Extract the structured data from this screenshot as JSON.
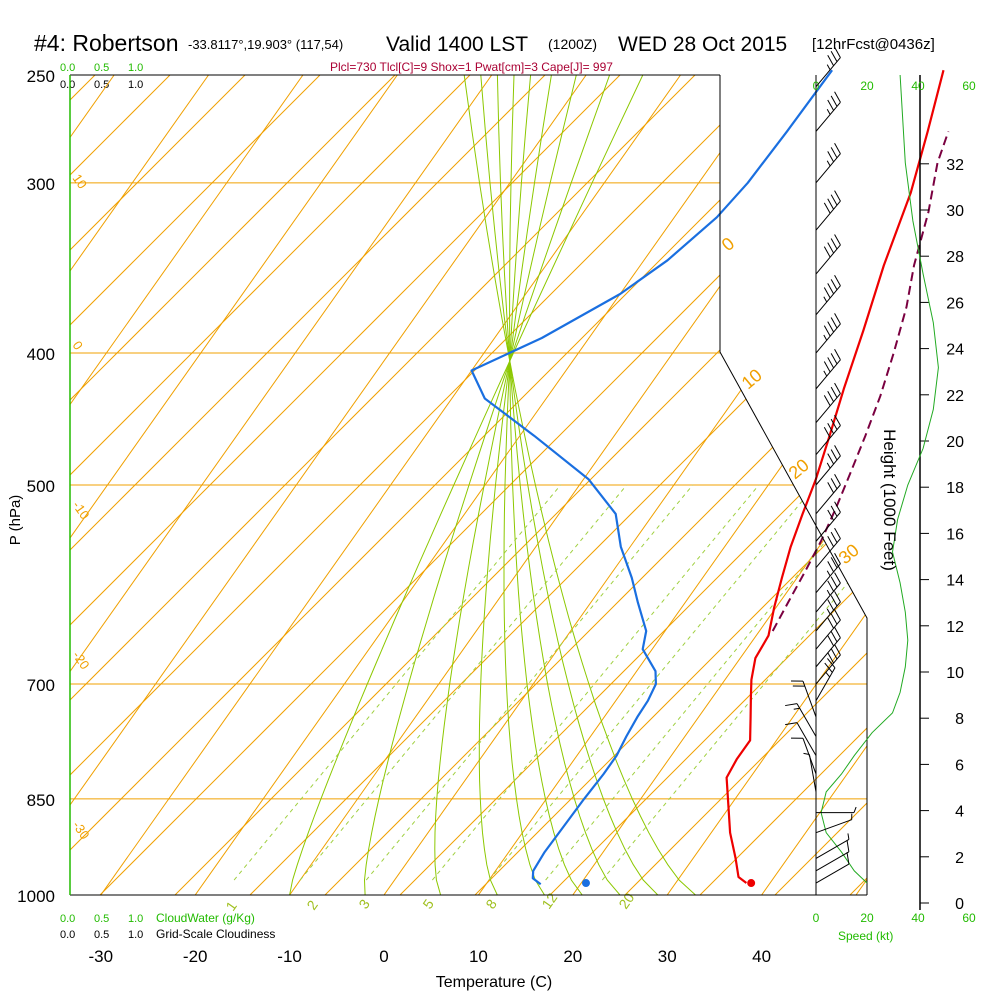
{
  "header": {
    "station": "#4: Robertson",
    "coords": "-33.8117°,19.903° (117,54)",
    "valid": "Valid 1400 LST",
    "utc": "(1200Z)",
    "date": "WED 28 Oct 2015",
    "forecast": "[12hrFcst@0436z]",
    "indices": "Plcl=730 Tlcl[C]=9 Shox=1 Pwat[cm]=3 Cape[J]= 997"
  },
  "legends": {
    "cloudwater_label": "CloudWater (g/Kg)",
    "cloudiness_label": "Grid-Scale Cloudiness",
    "scale_ticks": [
      "0.0",
      "0.5",
      "1.0"
    ],
    "speed_label": "Speed (kt)",
    "speed_ticks": [
      "0",
      "20",
      "40",
      "60"
    ]
  },
  "colors": {
    "isotherm": "#f0a000",
    "dry_adiabat": "#f0a000",
    "moist_adiabat": "#8cc800",
    "mixing_ratio": "#a0d040",
    "temperature": "#ee0000",
    "dewpoint": "#1a6fe0",
    "parcel": "#7a0040",
    "wind_speed": "#22aa22",
    "axis": "#000000"
  },
  "chart_data": {
    "type": "line",
    "title": "#4: Robertson -33.8117°,19.903° (117,54) Valid 1400 LST (1200Z) WED 28 Oct 2015 [12hrFcst@0436z]",
    "xlabel": "Temperature (C)",
    "ylabel": "P (hPa)",
    "y2label": "Height (1000 Feet)",
    "xlim": [
      -34,
      45
    ],
    "ylim": [
      1000,
      250
    ],
    "x_ticks": [
      -30,
      -20,
      -10,
      0,
      10,
      20,
      30,
      40
    ],
    "p_ticks": [
      250,
      300,
      400,
      500,
      700,
      850,
      1000
    ],
    "height_ticks": [
      0,
      2,
      4,
      6,
      8,
      10,
      12,
      14,
      16,
      18,
      20,
      22,
      24,
      26,
      28,
      30,
      32
    ],
    "isotherm_labels": [
      -30,
      -20,
      -10,
      0,
      10,
      20,
      30
    ],
    "mixing_ratio_labels": [
      "1",
      "2",
      "3",
      "5",
      "8",
      "12",
      "20"
    ],
    "series": [
      {
        "name": "Temperature",
        "points": [
          [
            37.5,
            980
          ],
          [
            36.2,
            970
          ],
          [
            34.5,
            940
          ],
          [
            32.0,
            900
          ],
          [
            29.8,
            860
          ],
          [
            27.5,
            820
          ],
          [
            27.2,
            795
          ],
          [
            27.2,
            770
          ],
          [
            25.5,
            740
          ],
          [
            24.0,
            715
          ],
          [
            22.8,
            695
          ],
          [
            21.6,
            670
          ],
          [
            21.3,
            645
          ],
          [
            19.8,
            615
          ],
          [
            18.4,
            585
          ],
          [
            17.0,
            555
          ],
          [
            15.8,
            525
          ],
          [
            14.6,
            495
          ],
          [
            12.8,
            460
          ],
          [
            10.8,
            425
          ],
          [
            8.5,
            385
          ],
          [
            5.8,
            345
          ],
          [
            3.2,
            305
          ],
          [
            0.4,
            275
          ],
          [
            -2.5,
            248
          ]
        ]
      },
      {
        "name": "Dewpoint",
        "points": [
          [
            15.8,
            982
          ],
          [
            14.5,
            972
          ],
          [
            14.0,
            960
          ],
          [
            13.8,
            930
          ],
          [
            13.9,
            890
          ],
          [
            14.0,
            850
          ],
          [
            14.2,
            815
          ],
          [
            14.2,
            790
          ],
          [
            13.8,
            765
          ],
          [
            13.5,
            740
          ],
          [
            13.4,
            720
          ],
          [
            13.0,
            700
          ],
          [
            12.0,
            685
          ],
          [
            9.0,
            660
          ],
          [
            8.0,
            640
          ],
          [
            5.0,
            610
          ],
          [
            2.5,
            585
          ],
          [
            -1.0,
            555
          ],
          [
            -4.0,
            525
          ],
          [
            -9.5,
            495
          ],
          [
            -18.5,
            460
          ],
          [
            -26.5,
            432
          ],
          [
            -30.0,
            412
          ],
          [
            -25.0,
            390
          ],
          [
            -20.0,
            362
          ],
          [
            -17.5,
            342
          ],
          [
            -15.5,
            318
          ],
          [
            -14.8,
            300
          ],
          [
            -14.5,
            275
          ],
          [
            -14.3,
            248
          ]
        ]
      },
      {
        "name": "Parcel",
        "points": [
          [
            21.4,
            640
          ],
          [
            20.9,
            610
          ],
          [
            20.4,
            580
          ],
          [
            19.8,
            550
          ],
          [
            18.9,
            520
          ],
          [
            17.8,
            490
          ],
          [
            16.6,
            460
          ],
          [
            15.2,
            430
          ],
          [
            13.4,
            400
          ],
          [
            11.3,
            370
          ],
          [
            9.0,
            345
          ],
          [
            6.5,
            315
          ],
          [
            3.8,
            290
          ],
          [
            2.6,
            275
          ]
        ]
      }
    ],
    "surface_points": [
      {
        "name": "surface-temperature",
        "t": 38.0,
        "p": 980
      },
      {
        "name": "surface-dewpoint",
        "t": 20.5,
        "p": 980
      }
    ],
    "wind_speed_profile": {
      "axis": "Speed (kt)",
      "xlim": [
        0,
        60
      ],
      "points": [
        [
          20,
          980
        ],
        [
          15,
          960
        ],
        [
          10,
          930
        ],
        [
          4,
          900
        ],
        [
          2,
          870
        ],
        [
          4,
          840
        ],
        [
          10,
          815
        ],
        [
          15,
          790
        ],
        [
          22,
          760
        ],
        [
          30,
          735
        ],
        [
          33,
          710
        ],
        [
          35,
          680
        ],
        [
          36,
          650
        ],
        [
          35,
          620
        ],
        [
          33,
          590
        ],
        [
          30,
          560
        ],
        [
          32,
          530
        ],
        [
          36,
          500
        ],
        [
          42,
          470
        ],
        [
          46,
          440
        ],
        [
          48,
          410
        ],
        [
          46,
          380
        ],
        [
          42,
          350
        ],
        [
          38,
          320
        ],
        [
          35,
          290
        ],
        [
          33,
          250
        ]
      ]
    },
    "wind_barbs": [
      {
        "p": 980,
        "speed": 10,
        "dir": 300
      },
      {
        "p": 960,
        "speed": 10,
        "dir": 300
      },
      {
        "p": 940,
        "speed": 5,
        "dir": 300
      },
      {
        "p": 900,
        "speed": 5,
        "dir": 290
      },
      {
        "p": 870,
        "speed": 5,
        "dir": 270
      },
      {
        "p": 840,
        "speed": 5,
        "dir": 10
      },
      {
        "p": 815,
        "speed": 10,
        "dir": 20
      },
      {
        "p": 790,
        "speed": 10,
        "dir": 30
      },
      {
        "p": 765,
        "speed": 15,
        "dir": 30
      },
      {
        "p": 740,
        "speed": 20,
        "dir": 20
      },
      {
        "p": 720,
        "speed": 25,
        "dir": 330
      },
      {
        "p": 700,
        "speed": 30,
        "dir": 320
      },
      {
        "p": 680,
        "speed": 30,
        "dir": 320
      },
      {
        "p": 660,
        "speed": 30,
        "dir": 320
      },
      {
        "p": 640,
        "speed": 35,
        "dir": 320
      },
      {
        "p": 620,
        "speed": 35,
        "dir": 320
      },
      {
        "p": 600,
        "speed": 35,
        "dir": 320
      },
      {
        "p": 575,
        "speed": 30,
        "dir": 320
      },
      {
        "p": 550,
        "speed": 30,
        "dir": 320
      },
      {
        "p": 525,
        "speed": 30,
        "dir": 320
      },
      {
        "p": 500,
        "speed": 35,
        "dir": 320
      },
      {
        "p": 475,
        "speed": 40,
        "dir": 320
      },
      {
        "p": 450,
        "speed": 40,
        "dir": 320
      },
      {
        "p": 425,
        "speed": 45,
        "dir": 320
      },
      {
        "p": 400,
        "speed": 45,
        "dir": 320
      },
      {
        "p": 375,
        "speed": 45,
        "dir": 320
      },
      {
        "p": 350,
        "speed": 40,
        "dir": 320
      },
      {
        "p": 325,
        "speed": 40,
        "dir": 320
      },
      {
        "p": 300,
        "speed": 35,
        "dir": 320
      },
      {
        "p": 275,
        "speed": 35,
        "dir": 320
      },
      {
        "p": 255,
        "speed": 35,
        "dir": 320
      }
    ]
  }
}
